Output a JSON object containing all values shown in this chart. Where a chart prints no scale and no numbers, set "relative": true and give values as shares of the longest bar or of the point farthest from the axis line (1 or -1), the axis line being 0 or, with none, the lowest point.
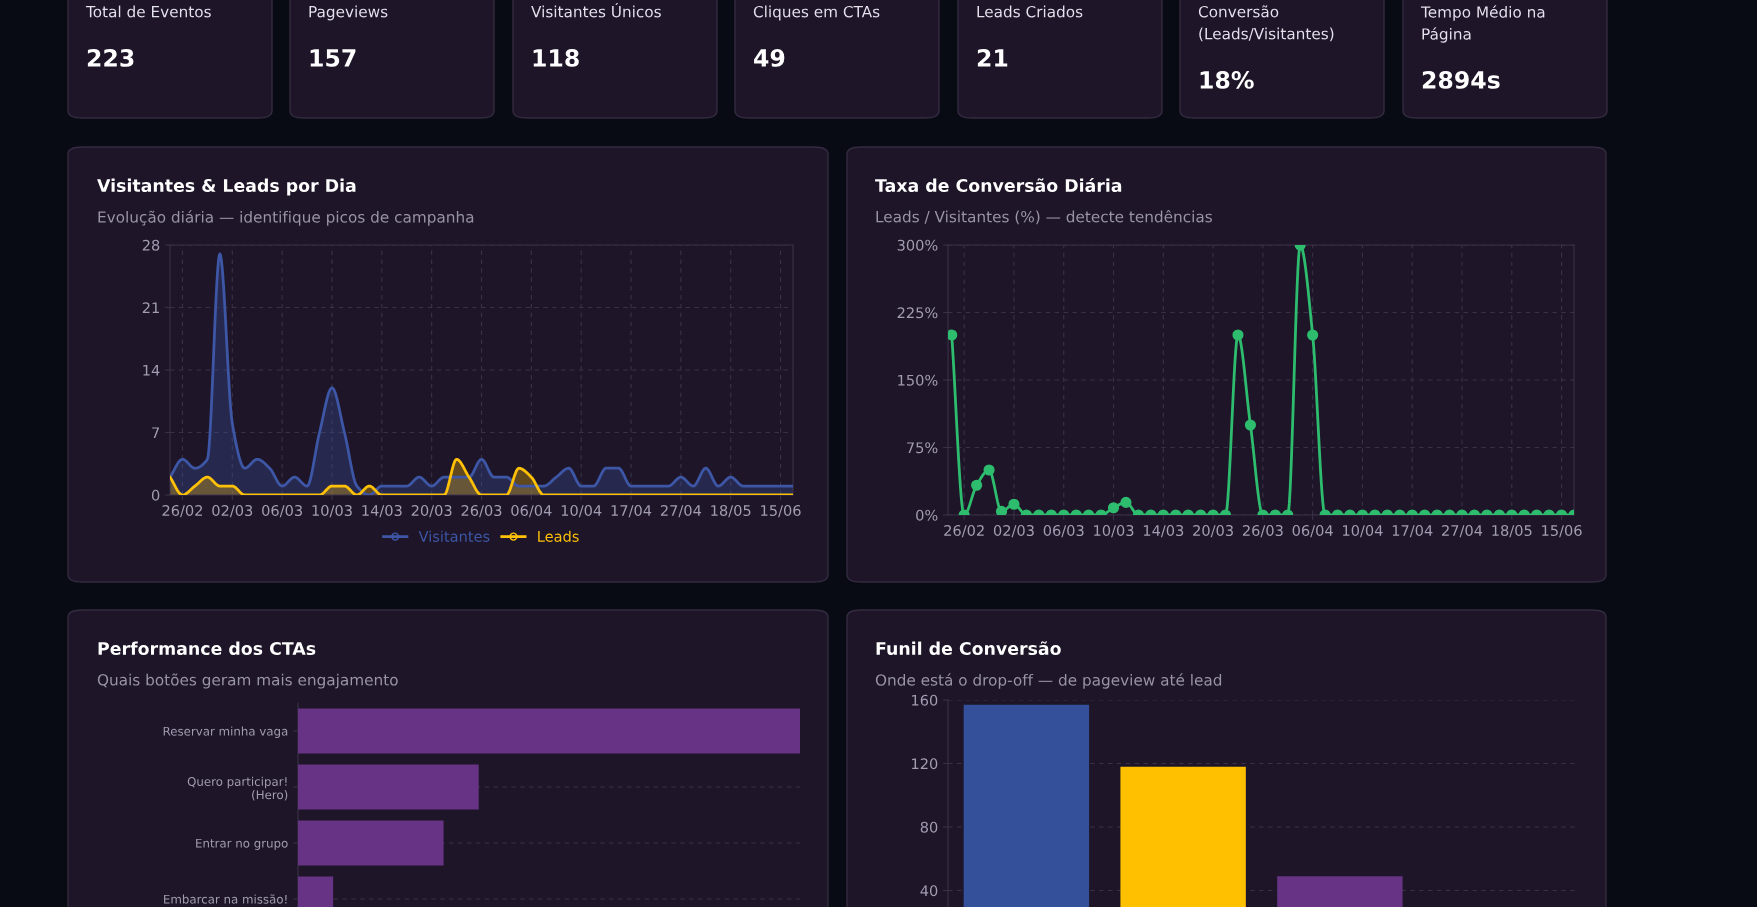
{
  "chart_data": [
    {
      "type": "other",
      "categories": [
        "Total de Eventos",
        "Pageviews",
        "Visitantes Únicos",
        "Cliques em CTAs",
        "Leads Criados",
        "Conversão (Leads/Visitantes)",
        "Tempo Médio na Página"
      ],
      "value_labels": [
        "223",
        "157",
        "118",
        "49",
        "21",
        "18%",
        "2894s"
      ]
    },
    {
      "type": "area",
      "title": "Visitantes & Leads por Dia",
      "subtitle": "Evolução diária — identifique picos de campanha",
      "categories": [
        null,
        "26/02",
        null,
        null,
        null,
        "02/03",
        null,
        null,
        null,
        "06/03",
        null,
        null,
        null,
        "10/03",
        null,
        null,
        null,
        "14/03",
        null,
        null,
        null,
        "20/03",
        null,
        null,
        null,
        "26/03",
        null,
        null,
        null,
        "06/04",
        null,
        null,
        null,
        "10/04",
        null,
        null,
        null,
        "17/04",
        null,
        null,
        null,
        "27/04",
        null,
        null,
        null,
        "18/05",
        null,
        null,
        null,
        "15/06",
        null
      ],
      "series": [
        {
          "name": "Visitantes",
          "color": "#3d56a6",
          "values": [
            2,
            4,
            3,
            4,
            27,
            8,
            3,
            4,
            3,
            1,
            2,
            1,
            7,
            12,
            7,
            1,
            0,
            1,
            1,
            1,
            2,
            1,
            2,
            2,
            2,
            4,
            2,
            2,
            1,
            1,
            1,
            2,
            3,
            1,
            1,
            3,
            3,
            1,
            1,
            1,
            1,
            2,
            1,
            3,
            1,
            2,
            1,
            1,
            1,
            1,
            1
          ]
        },
        {
          "name": "Leads",
          "color": "#ffc107",
          "values": [
            2,
            0,
            1,
            2,
            1,
            1,
            0,
            0,
            0,
            0,
            0,
            0,
            0,
            1,
            1,
            0,
            1,
            0,
            0,
            0,
            0,
            0,
            0,
            4,
            2,
            0,
            0,
            0,
            3,
            2,
            0,
            0,
            0,
            0,
            0,
            0,
            0,
            0,
            0,
            0,
            0,
            0,
            0,
            0,
            0,
            0,
            0,
            0,
            0,
            0,
            0
          ]
        }
      ],
      "ylim": [
        0,
        28
      ],
      "yticks": [
        0,
        7,
        14,
        21,
        28
      ],
      "grid": true,
      "legend": "bottom",
      "marker": "none"
    },
    {
      "type": "line",
      "title": "Taxa de Conversão Diária",
      "subtitle": "Leads / Visitantes (%) — detecte tendências",
      "categories": [
        null,
        "26/02",
        null,
        null,
        null,
        "02/03",
        null,
        null,
        null,
        "06/03",
        null,
        null,
        null,
        "10/03",
        null,
        null,
        null,
        "14/03",
        null,
        null,
        null,
        "20/03",
        null,
        null,
        null,
        "26/03",
        null,
        null,
        null,
        "06/04",
        null,
        null,
        null,
        "10/04",
        null,
        null,
        null,
        "17/04",
        null,
        null,
        null,
        "27/04",
        null,
        null,
        null,
        "18/05",
        null,
        null,
        null,
        "15/06",
        null
      ],
      "series": [
        {
          "color": "#2ebd6e",
          "values": [
            200,
            0,
            33,
            50,
            4,
            12,
            0,
            0,
            0,
            0,
            0,
            0,
            0,
            8,
            14,
            0,
            0,
            0,
            0,
            0,
            0,
            0,
            0,
            200,
            100,
            0,
            0,
            0,
            300,
            200,
            0,
            0,
            0,
            0,
            0,
            0,
            0,
            0,
            0,
            0,
            0,
            0,
            0,
            0,
            0,
            0,
            0,
            0,
            0,
            0,
            0
          ]
        }
      ],
      "ylim": [
        0,
        300
      ],
      "yticks": [
        {
          "value": 0,
          "label": "0%"
        },
        {
          "value": 75,
          "label": "75%"
        },
        {
          "value": 150,
          "label": "150%"
        },
        {
          "value": 225,
          "label": "225%"
        },
        {
          "value": 300,
          "label": "300%"
        }
      ],
      "grid": true,
      "marker": "circle"
    },
    {
      "type": "bar",
      "orientation": "horizontal",
      "relative": true,
      "title": "Performance dos CTAs",
      "subtitle": "Quais botões geram mais engajamento",
      "categories": [
        "Reservar minha vaga",
        "Quero participar! (Hero)",
        "Entrar no grupo",
        "Embarcar na missão!"
      ],
      "values": [
        1,
        0.36,
        0.29,
        0.07
      ],
      "color": "#663385",
      "grid": "y"
    },
    {
      "type": "bar",
      "title": "Funil de Conversão",
      "subtitle": "Onde está o drop-off — de pageview até lead",
      "categories": [
        null,
        null,
        null,
        null
      ],
      "values": [
        157,
        118,
        49,
        null
      ],
      "colors": [
        "#34509a",
        "#ffc000",
        "#663385",
        "#2ebd6e"
      ],
      "ylim": [
        0,
        160
      ],
      "yticks": [
        40,
        80,
        120,
        160
      ],
      "grid": true
    }
  ]
}
